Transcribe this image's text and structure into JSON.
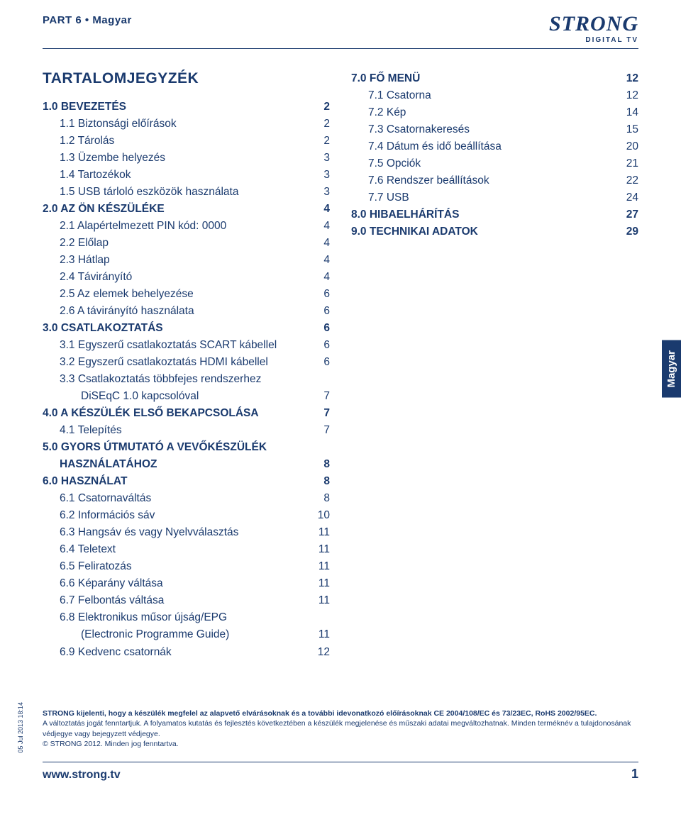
{
  "colors": {
    "primary": "#1a3a6e",
    "background": "#ffffff"
  },
  "header": {
    "part_label": "PART 6 • Magyar",
    "logo_text": "STRONG",
    "logo_sub": "DIGITAL TV"
  },
  "side_tab": "Magyar",
  "toc_title": "TARTALOMJEGYZÉK",
  "left_col": [
    {
      "label": "1.0 BEVEZETÉS",
      "page": "2",
      "section": true,
      "indent": 0
    },
    {
      "label": "1.1 Biztonsági előírások",
      "page": "2",
      "section": false,
      "indent": 1
    },
    {
      "label": "1.2 Tárolás",
      "page": "2",
      "section": false,
      "indent": 1
    },
    {
      "label": "1.3 Üzembe helyezés",
      "page": "3",
      "section": false,
      "indent": 1
    },
    {
      "label": "1.4 Tartozékok",
      "page": "3",
      "section": false,
      "indent": 1
    },
    {
      "label": "1.5 USB tárloló eszközök használata",
      "page": "3",
      "section": false,
      "indent": 1
    },
    {
      "label": "2.0 AZ ÖN KÉSZÜLÉKE",
      "page": "4",
      "section": true,
      "indent": 0
    },
    {
      "label": "2.1 Alapértelmezett PIN kód: 0000",
      "page": "4",
      "section": false,
      "indent": 1
    },
    {
      "label": "2.2 Előlap",
      "page": "4",
      "section": false,
      "indent": 1
    },
    {
      "label": "2.3 Hátlap",
      "page": "4",
      "section": false,
      "indent": 1
    },
    {
      "label": "2.4 Távirányító",
      "page": "4",
      "section": false,
      "indent": 1
    },
    {
      "label": "2.5 Az elemek behelyezése",
      "page": "6",
      "section": false,
      "indent": 1
    },
    {
      "label": "2.6 A távirányító használata",
      "page": "6",
      "section": false,
      "indent": 1
    },
    {
      "label": "3.0 CSATLAKOZTATÁS",
      "page": "6",
      "section": true,
      "indent": 0
    },
    {
      "label": "3.1 Egyszerű csatlakoztatás SCART kábellel",
      "page": "6",
      "section": false,
      "indent": 1
    },
    {
      "label": "3.2 Egyszerű csatlakoztatás HDMI kábellel",
      "page": "6",
      "section": false,
      "indent": 1
    },
    {
      "label": "3.3 Csatlakoztatás többfejes rendszerhez",
      "page": "",
      "section": false,
      "indent": 1
    },
    {
      "label": "DiSEqC 1.0 kapcsolóval",
      "page": "7",
      "section": false,
      "indent": 2
    },
    {
      "label": "4.0 A KÉSZÜLÉK ELSŐ BEKAPCSOLÁSA",
      "page": "7",
      "section": true,
      "indent": 0
    },
    {
      "label": "4.1 Telepítés",
      "page": "7",
      "section": false,
      "indent": 1
    },
    {
      "label": "5.0 GYORS ÚTMUTATÓ A VEVŐKÉSZÜLÉK",
      "page": "",
      "section": true,
      "indent": 0
    },
    {
      "label": "HASZNÁLATÁHOZ",
      "page": "8",
      "section": true,
      "indent": 1
    },
    {
      "label": "6.0 HASZNÁLAT",
      "page": "8",
      "section": true,
      "indent": 0
    },
    {
      "label": "6.1 Csatornaváltás",
      "page": "8",
      "section": false,
      "indent": 1
    },
    {
      "label": "6.2 Információs sáv",
      "page": "10",
      "section": false,
      "indent": 1
    },
    {
      "label": "6.3 Hangsáv és vagy Nyelvválasztás",
      "page": "11",
      "section": false,
      "indent": 1
    },
    {
      "label": "6.4 Teletext",
      "page": "11",
      "section": false,
      "indent": 1
    },
    {
      "label": "6.5 Feliratozás",
      "page": "11",
      "section": false,
      "indent": 1
    },
    {
      "label": "6.6 Képarány váltása",
      "page": "11",
      "section": false,
      "indent": 1
    },
    {
      "label": "6.7 Felbontás váltása",
      "page": "11",
      "section": false,
      "indent": 1
    },
    {
      "label": "6.8 Elektronikus műsor újság/EPG",
      "page": "",
      "section": false,
      "indent": 1
    },
    {
      "label": "(Electronic Programme Guide)",
      "page": "11",
      "section": false,
      "indent": 2
    },
    {
      "label": "6.9 Kedvenc csatornák",
      "page": "12",
      "section": false,
      "indent": 1
    }
  ],
  "right_col": [
    {
      "label": "7.0 FŐ MENÜ",
      "page": "12",
      "section": true,
      "indent": 0
    },
    {
      "label": "7.1 Csatorna",
      "page": "12",
      "section": false,
      "indent": 1
    },
    {
      "label": "7.2 Kép",
      "page": "14",
      "section": false,
      "indent": 1
    },
    {
      "label": "7.3 Csatornakeresés",
      "page": "15",
      "section": false,
      "indent": 1
    },
    {
      "label": "7.4 Dátum és idő beállítása",
      "page": "20",
      "section": false,
      "indent": 1
    },
    {
      "label": "7.5 Opciók",
      "page": "21",
      "section": false,
      "indent": 1
    },
    {
      "label": "7.6 Rendszer beállítások",
      "page": "22",
      "section": false,
      "indent": 1
    },
    {
      "label": "7.7 USB",
      "page": "24",
      "section": false,
      "indent": 1
    },
    {
      "label": "8.0 HIBAELHÁRÍTÁS",
      "page": "27",
      "section": true,
      "indent": 0
    },
    {
      "label": "9.0 TECHNIKAI ADATOK",
      "page": "29",
      "section": true,
      "indent": 0
    }
  ],
  "footer": {
    "date_vertical": "05 Jul 2013 18:14",
    "legal_bold": "STRONG kijelenti, hogy a készülék megfelel az alapvető elvárásoknak és a további idevonatkozó előírásoknak CE 2004/108/EC és 73/23EC, RoHS 2002/95EC.",
    "legal_rest": "A változtatás jogát fenntartjuk. A folyamatos kutatás és fejlesztés következtében a készülék megjelenése és műszaki adatai megváltozhatnak. Minden terméknév a tulajdonosának védjegye vagy bejegyzett védjegye.",
    "legal_copyright": "© STRONG 2012. Minden jog fenntartva.",
    "url": "www.strong.tv",
    "page_no": "1"
  }
}
